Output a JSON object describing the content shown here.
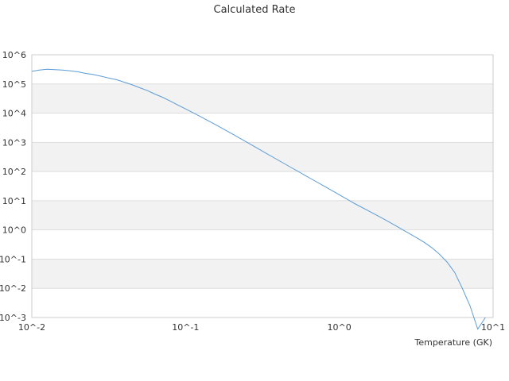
{
  "chart_data": {
    "type": "line",
    "title": "Calculated Rate",
    "xlabel": "Temperature (GK)",
    "ylabel": "",
    "x_scale": "log",
    "y_scale": "log",
    "xlim": [
      0.01,
      10
    ],
    "ylim": [
      0.001,
      1000000
    ],
    "x_ticks": [
      "10^-2",
      "10^-1",
      "10^0",
      "10^1"
    ],
    "y_ticks": [
      "10^-3",
      "10^-2",
      "10^-1",
      "10^0",
      "10^1",
      "10^2",
      "10^3",
      "10^4",
      "10^5",
      "10^6"
    ],
    "grid": true,
    "band_colors": [
      "#f2f2f2",
      "#ffffff"
    ],
    "line_color": "#5b9bd5",
    "series": [
      {
        "x": [
          0.01,
          0.0112,
          0.0126,
          0.0141,
          0.0158,
          0.0178,
          0.02,
          0.0224,
          0.0251,
          0.0282,
          0.0316,
          0.0355,
          0.0398,
          0.0447,
          0.0501,
          0.0562,
          0.0631,
          0.0708,
          0.0794,
          0.0891,
          0.1,
          0.1259,
          0.1585,
          0.1995,
          0.2512,
          0.3162,
          0.3981,
          0.5012,
          0.631,
          0.7943,
          1.0,
          1.259,
          1.585,
          1.995,
          2.512,
          3.162,
          3.548,
          3.981,
          4.467,
          5.012,
          5.623,
          6.31,
          7.079,
          7.943,
          8.913
        ],
        "y": [
          270000,
          300000,
          320000,
          310000,
          300000,
          280000,
          260000,
          230000,
          210000,
          185000,
          160000,
          140000,
          115000,
          95000,
          75000,
          60000,
          45000,
          35000,
          26000,
          19000,
          14000,
          7500,
          3900,
          2000,
          1000,
          500,
          250,
          125,
          63,
          32,
          16,
          8,
          4.2,
          2.2,
          1.1,
          0.55,
          0.38,
          0.25,
          0.15,
          0.08,
          0.035,
          0.01,
          0.0025,
          0.0004,
          0.001
        ]
      }
    ]
  }
}
